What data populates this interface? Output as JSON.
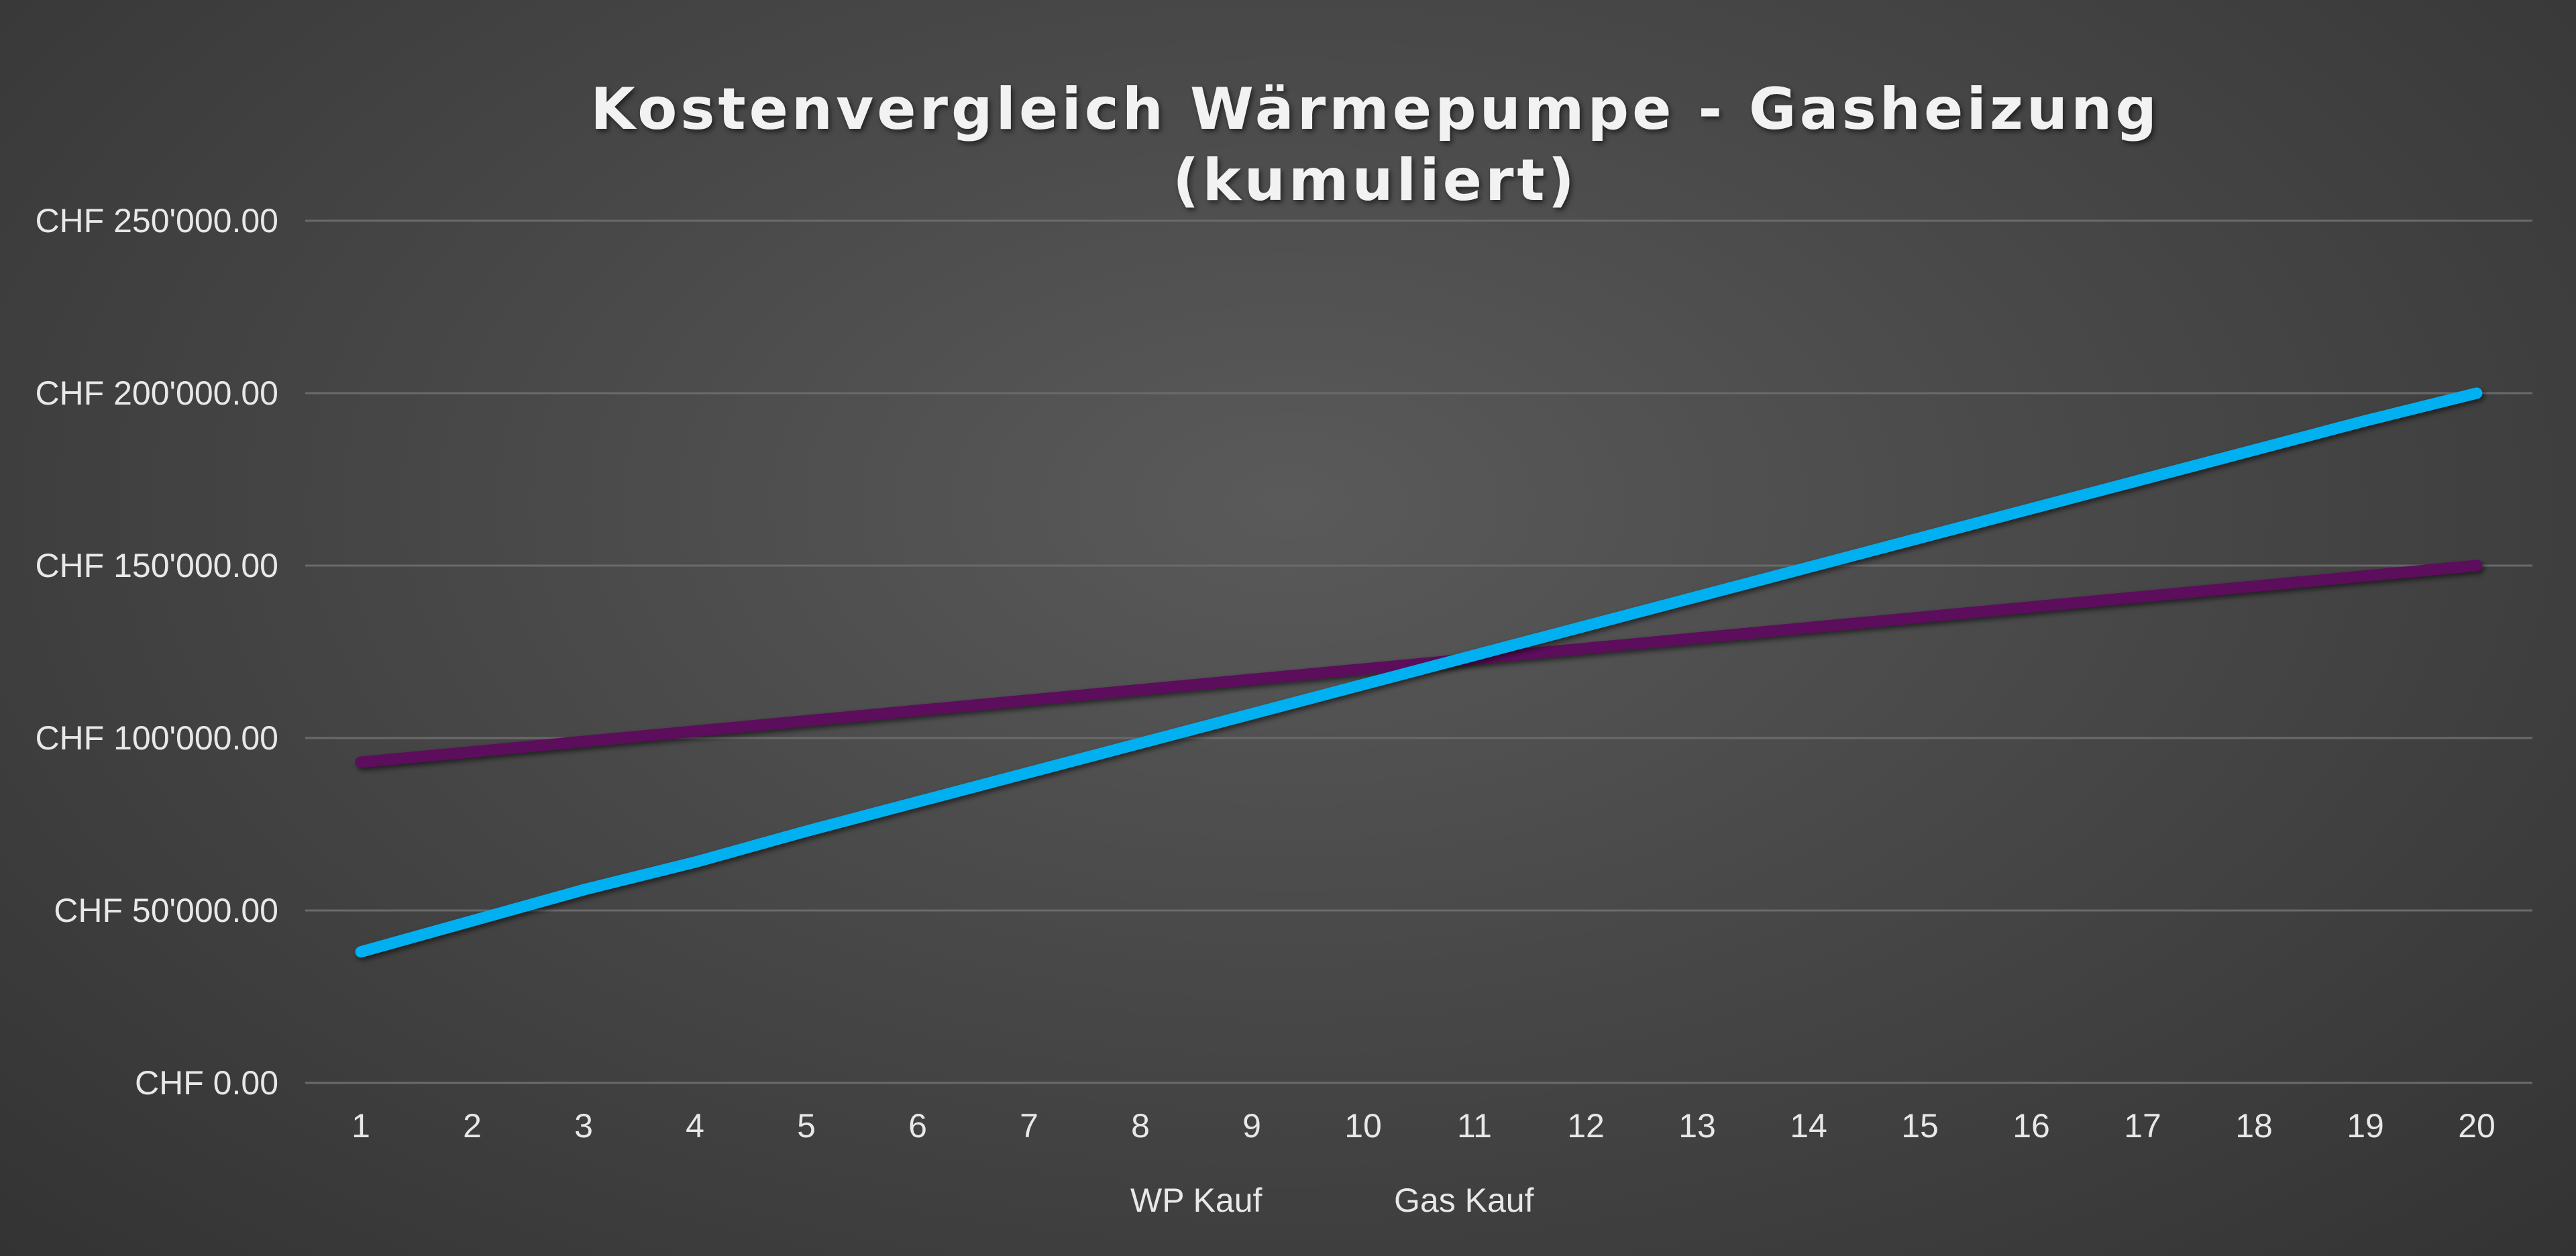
{
  "chart_data": {
    "type": "line",
    "title_line1": "Kostenvergleich Wärmepumpe - Gasheizung",
    "title_line2": "(kumuliert)",
    "categories": [
      "1",
      "2",
      "3",
      "4",
      "5",
      "6",
      "7",
      "8",
      "9",
      "10",
      "11",
      "12",
      "13",
      "14",
      "15",
      "16",
      "17",
      "18",
      "19",
      "20"
    ],
    "ylim": [
      0,
      250000
    ],
    "y_tick_labels": [
      "CHF 0.00",
      "CHF 50'000.00",
      "CHF 100'000.00",
      "CHF 150'000.00",
      "CHF 200'000.00",
      "CHF 250'000.00"
    ],
    "y_tick_values": [
      0,
      50000,
      100000,
      150000,
      200000,
      250000
    ],
    "grid": true,
    "legend_position": "bottom",
    "series": [
      {
        "name": "WP Kauf",
        "color": "#5c0a5c",
        "values": [
          93000,
          96000,
          99000,
          102000,
          105000,
          108000,
          111000,
          114000,
          117000,
          120000,
          123000,
          126000,
          129000,
          132000,
          135000,
          138000,
          141000,
          144000,
          147000,
          150000
        ]
      },
      {
        "name": "Gas Kauf",
        "color": "#00b0f0",
        "values": [
          38000,
          47000,
          56000,
          64000,
          73000,
          81500,
          90000,
          98500,
          107000,
          115500,
          124000,
          132500,
          141000,
          149500,
          158000,
          166500,
          175000,
          183500,
          192000,
          200000
        ]
      }
    ]
  }
}
